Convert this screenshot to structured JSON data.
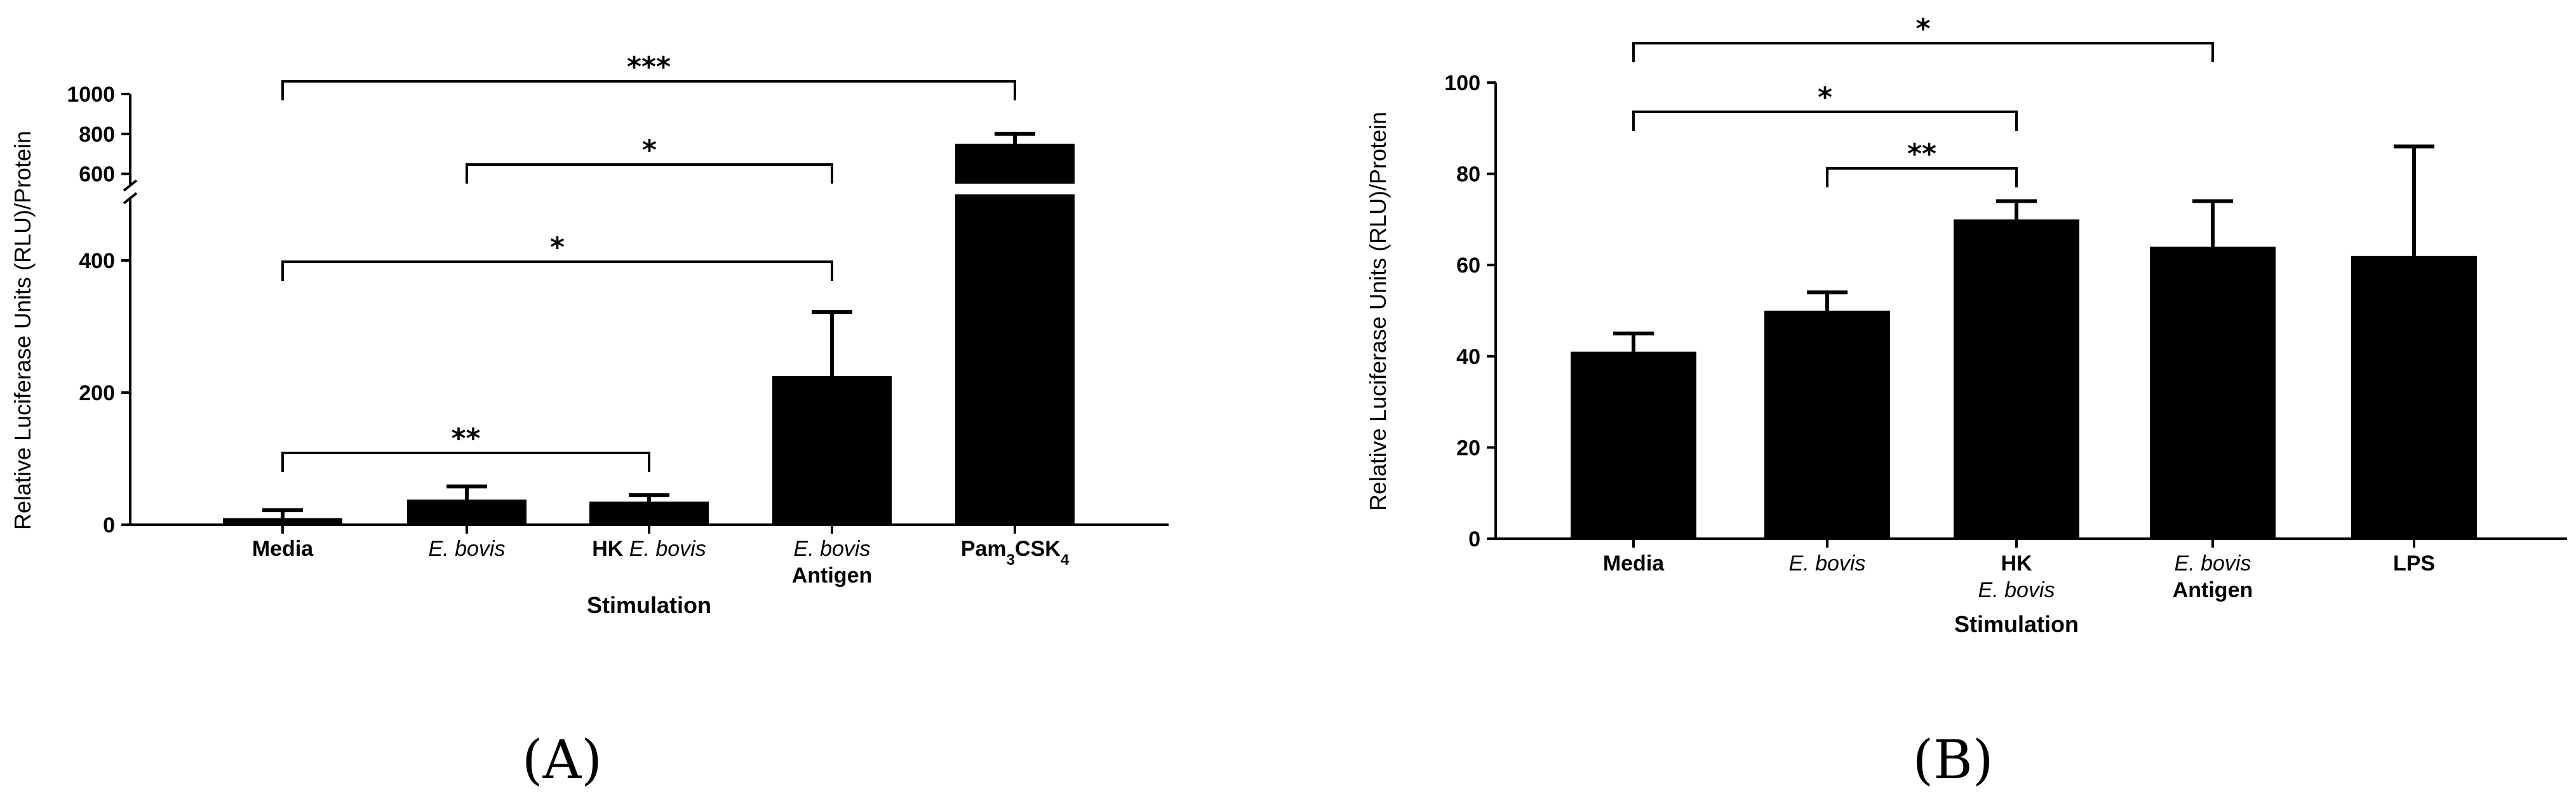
{
  "chart_data": [
    {
      "type": "bar",
      "panel_label": "(A)",
      "ylabel": "Relative Luciferase Units (RLU)/Protein",
      "xlabel": "Stimulation",
      "y_axis_break": true,
      "ylim_lower": [
        0,
        500
      ],
      "ylim_upper": [
        500,
        1000
      ],
      "yticks_lower": [
        "0",
        "200",
        "400"
      ],
      "yticks_upper": [
        "600",
        "800",
        "1000"
      ],
      "categories": [
        {
          "lines": [
            {
              "text": "Media",
              "style": "bold"
            }
          ]
        },
        {
          "lines": [
            {
              "text": "E. bovis",
              "style": "italic"
            }
          ]
        },
        {
          "lines": [
            {
              "text": "HK ",
              "style": "bold",
              "continue": "E. bovis",
              "continue_style": "italic"
            }
          ]
        },
        {
          "lines": [
            {
              "text": "E. bovis",
              "style": "italic"
            },
            {
              "text": "Antigen",
              "style": "bold"
            }
          ]
        },
        {
          "lines": [
            {
              "text": "Pam",
              "style": "bold",
              "sub": "3",
              "after": "CSK",
              "sub2": "4"
            }
          ]
        }
      ],
      "values": [
        10,
        38,
        35,
        225,
        750
      ],
      "errors": [
        12,
        20,
        10,
        97,
        50
      ],
      "significance": [
        {
          "from": 0,
          "to": 4,
          "label": "***"
        },
        {
          "from": 1,
          "to": 3,
          "label": "*"
        },
        {
          "from": 0,
          "to": 3,
          "label": "*"
        },
        {
          "from": 0,
          "to": 2,
          "label": "**"
        }
      ]
    },
    {
      "type": "bar",
      "panel_label": "(B)",
      "ylabel": "Relative Luciferase Units (RLU)/Protein",
      "xlabel": "Stimulation",
      "ylim": [
        0,
        100
      ],
      "yticks": [
        "0",
        "20",
        "40",
        "60",
        "80",
        "100"
      ],
      "categories": [
        {
          "lines": [
            {
              "text": "Media",
              "style": "bold"
            }
          ]
        },
        {
          "lines": [
            {
              "text": "E. bovis",
              "style": "italic"
            }
          ]
        },
        {
          "lines": [
            {
              "text": "HK",
              "style": "bold"
            },
            {
              "text": "E. bovis",
              "style": "italic"
            }
          ]
        },
        {
          "lines": [
            {
              "text": "E. bovis",
              "style": "italic"
            },
            {
              "text": "Antigen",
              "style": "bold"
            }
          ]
        },
        {
          "lines": [
            {
              "text": "LPS",
              "style": "bold"
            }
          ]
        }
      ],
      "values": [
        41,
        50,
        70,
        64,
        62
      ],
      "errors": [
        4,
        4,
        4,
        10,
        24
      ],
      "significance": [
        {
          "from": 0,
          "to": 3,
          "label": "*"
        },
        {
          "from": 0,
          "to": 2,
          "label": "*"
        },
        {
          "from": 1,
          "to": 2,
          "label": "**"
        }
      ]
    }
  ]
}
